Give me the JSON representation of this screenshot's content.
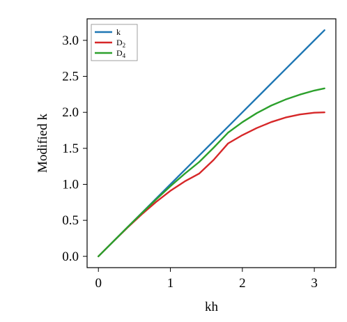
{
  "chart_data": {
    "type": "line",
    "xlabel": "kh",
    "ylabel": "Modified k",
    "xlim": [
      -0.157,
      3.299
    ],
    "ylim": [
      -0.157,
      3.299
    ],
    "x_ticks": [
      0,
      1,
      2,
      3
    ],
    "x_tick_labels": [
      "0",
      "1",
      "2",
      "3"
    ],
    "y_ticks": [
      0.0,
      0.5,
      1.0,
      1.5,
      2.0,
      2.5,
      3.0
    ],
    "y_tick_labels": [
      "0.0",
      "0.5",
      "1.0",
      "1.5",
      "2.0",
      "2.5",
      "3.0"
    ],
    "grid": false,
    "legend_position": "top-left",
    "x": [
      0,
      0.2,
      0.4,
      0.6,
      0.8,
      1.0,
      1.2,
      1.4,
      1.6,
      1.8,
      2.0,
      2.2,
      2.4,
      2.6,
      2.8,
      3.0,
      3.1416
    ],
    "series": [
      {
        "name": "k",
        "color": "#1f77b4",
        "values": [
          0,
          0.2,
          0.4,
          0.6,
          0.8,
          1.0,
          1.2,
          1.4,
          1.6,
          1.8,
          2.0,
          2.2,
          2.4,
          2.6,
          2.8,
          3.0,
          3.1416
        ]
      },
      {
        "name": "D",
        "subscript": "2",
        "color": "#d62728",
        "values": [
          0,
          0.199,
          0.395,
          0.582,
          0.755,
          0.91,
          1.041,
          1.149,
          1.339,
          1.567,
          1.683,
          1.782,
          1.864,
          1.928,
          1.971,
          1.995,
          2.0
        ]
      },
      {
        "name": "D",
        "subscript": "4",
        "color": "#2ca02c",
        "values": [
          0,
          0.2,
          0.4,
          0.597,
          0.789,
          0.974,
          1.148,
          1.31,
          1.508,
          1.717,
          1.863,
          1.989,
          2.094,
          2.178,
          2.247,
          2.303,
          2.333
        ]
      }
    ]
  }
}
